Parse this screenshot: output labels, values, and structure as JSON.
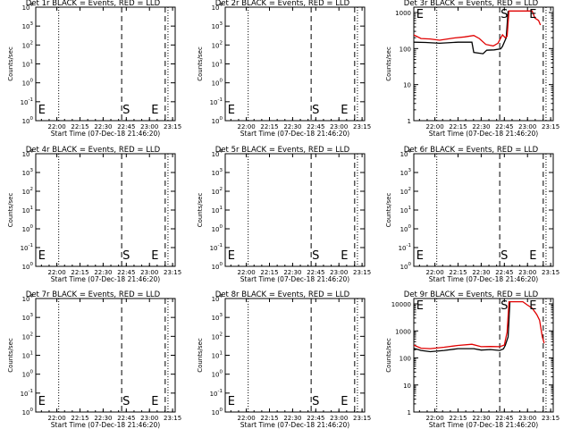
{
  "chart_data": [
    {
      "type": "line",
      "title": "Det 1r BLACK = Events, RED = LLD",
      "xlabel": "Start Time (07-Dec-18 21:46:20)",
      "ylabel": "Counts/sec",
      "ylog": true,
      "x_ticks": [
        "22:00",
        "22:15",
        "22:30",
        "22:45",
        "23:00",
        "23:15"
      ],
      "y_ticks": [
        {
          "m": "10",
          "e": "4"
        },
        {
          "m": "10",
          "e": "3"
        },
        {
          "m": "10",
          "e": "2"
        },
        {
          "m": "10",
          "e": "1"
        },
        {
          "m": "10",
          "e": "0"
        },
        {
          "m": "10",
          "e": "-1"
        },
        {
          "m": "10",
          "e": "0"
        }
      ],
      "markers": [
        "E",
        "S",
        "E"
      ],
      "series": []
    },
    {
      "type": "line",
      "title": "Det 2r BLACK = Events, RED = LLD",
      "xlabel": "Start Time (07-Dec-18 21:46:20)",
      "ylabel": "Counts/sec",
      "ylog": true,
      "x_ticks": [
        "22:00",
        "22:15",
        "22:30",
        "22:45",
        "23:00",
        "23:15"
      ],
      "y_ticks": [
        {
          "m": "10",
          "e": "4"
        },
        {
          "m": "10",
          "e": "3"
        },
        {
          "m": "10",
          "e": "2"
        },
        {
          "m": "10",
          "e": "1"
        },
        {
          "m": "10",
          "e": "0"
        },
        {
          "m": "10",
          "e": "-1"
        },
        {
          "m": "10",
          "e": "0"
        }
      ],
      "markers": [
        "E",
        "S",
        "E"
      ],
      "series": []
    },
    {
      "type": "line",
      "title": "Det 3r BLACK = Events, RED = LLD",
      "xlabel": "Start Time (07-Dec-18 21:46:20)",
      "ylabel": "Counts/sec",
      "ylog": true,
      "x_ticks": [
        "22:00",
        "22:15",
        "22:30",
        "22:45",
        "23:00",
        "23:15"
      ],
      "y_ticks": [
        {
          "m": "1000",
          "e": ""
        },
        {
          "m": "100",
          "e": ""
        },
        {
          "m": "10",
          "e": ""
        },
        {
          "m": "1",
          "e": ""
        }
      ],
      "ylim": [
        1,
        1000
      ],
      "markers": [
        "E",
        "S",
        "E"
      ],
      "series": [
        {
          "color": "#000000",
          "points": [
            [
              21.77,
              150
            ],
            [
              21.9,
              148
            ],
            [
              22.05,
              140
            ],
            [
              22.25,
              150
            ],
            [
              22.4,
              150
            ],
            [
              22.42,
              78
            ],
            [
              22.52,
              72
            ],
            [
              22.56,
              90
            ],
            [
              22.64,
              92
            ],
            [
              22.71,
              98
            ],
            [
              22.73,
              115
            ],
            [
              22.77,
              200
            ],
            [
              22.79,
              1100
            ]
          ]
        },
        {
          "color": "#e00000",
          "points": [
            [
              21.77,
              240
            ],
            [
              21.85,
              190
            ],
            [
              21.95,
              185
            ],
            [
              22.05,
              170
            ],
            [
              22.2,
              195
            ],
            [
              22.32,
              210
            ],
            [
              22.42,
              230
            ],
            [
              22.48,
              190
            ],
            [
              22.55,
              130
            ],
            [
              22.63,
              118
            ],
            [
              22.68,
              140
            ],
            [
              22.73,
              240
            ],
            [
              22.76,
              200
            ],
            [
              22.78,
              220
            ],
            [
              22.8,
              1100
            ],
            [
              23.05,
              1100
            ],
            [
              23.08,
              700
            ],
            [
              23.12,
              600
            ],
            [
              23.14,
              450
            ]
          ]
        }
      ]
    },
    {
      "type": "line",
      "title": "Det 4r BLACK = Events, RED = LLD",
      "xlabel": "Start Time (07-Dec-18 21:46:20)",
      "ylabel": "Counts/sec",
      "ylog": true,
      "x_ticks": [
        "22:00",
        "22:15",
        "22:30",
        "22:45",
        "23:00",
        "23:15"
      ],
      "y_ticks": [
        {
          "m": "10",
          "e": "4"
        },
        {
          "m": "10",
          "e": "3"
        },
        {
          "m": "10",
          "e": "2"
        },
        {
          "m": "10",
          "e": "1"
        },
        {
          "m": "10",
          "e": "0"
        },
        {
          "m": "10",
          "e": "-1"
        },
        {
          "m": "10",
          "e": "0"
        }
      ],
      "markers": [
        "E",
        "S",
        "E"
      ],
      "series": []
    },
    {
      "type": "line",
      "title": "Det 5r BLACK = Events, RED = LLD",
      "xlabel": "Start Time (07-Dec-18 21:46:20)",
      "ylabel": "Counts/sec",
      "ylog": true,
      "x_ticks": [
        "22:00",
        "22:15",
        "22:30",
        "22:45",
        "23:00",
        "23:15"
      ],
      "y_ticks": [
        {
          "m": "10",
          "e": "4"
        },
        {
          "m": "10",
          "e": "3"
        },
        {
          "m": "10",
          "e": "2"
        },
        {
          "m": "10",
          "e": "1"
        },
        {
          "m": "10",
          "e": "0"
        },
        {
          "m": "10",
          "e": "-1"
        },
        {
          "m": "10",
          "e": "0"
        }
      ],
      "markers": [
        "E",
        "S",
        "E"
      ],
      "series": []
    },
    {
      "type": "line",
      "title": "Det 6r BLACK = Events, RED = LLD",
      "xlabel": "Start Time (07-Dec-18 21:46:20)",
      "ylabel": "Counts/sec",
      "ylog": true,
      "x_ticks": [
        "22:00",
        "22:15",
        "22:30",
        "22:45",
        "23:00",
        "23:15"
      ],
      "y_ticks": [
        {
          "m": "10",
          "e": "4"
        },
        {
          "m": "10",
          "e": "3"
        },
        {
          "m": "10",
          "e": "2"
        },
        {
          "m": "10",
          "e": "1"
        },
        {
          "m": "10",
          "e": "0"
        },
        {
          "m": "10",
          "e": "-1"
        },
        {
          "m": "10",
          "e": "0"
        }
      ],
      "markers": [
        "E",
        "S",
        "E"
      ],
      "series": []
    },
    {
      "type": "line",
      "title": "Det 7r BLACK = Events, RED = LLD",
      "xlabel": "Start Time (07-Dec-18 21:46:20)",
      "ylabel": "Counts/sec",
      "ylog": true,
      "x_ticks": [
        "22:00",
        "22:15",
        "22:30",
        "22:45",
        "23:00",
        "23:15"
      ],
      "y_ticks": [
        {
          "m": "10",
          "e": "4"
        },
        {
          "m": "10",
          "e": "3"
        },
        {
          "m": "10",
          "e": "2"
        },
        {
          "m": "10",
          "e": "1"
        },
        {
          "m": "10",
          "e": "0"
        },
        {
          "m": "10",
          "e": "-1"
        },
        {
          "m": "10",
          "e": "0"
        }
      ],
      "markers": [
        "E",
        "S",
        "E"
      ],
      "series": []
    },
    {
      "type": "line",
      "title": "Det 8r BLACK = Events, RED = LLD",
      "xlabel": "Start Time (07-Dec-18 21:46:20)",
      "ylabel": "Counts/sec",
      "ylog": true,
      "x_ticks": [
        "22:00",
        "22:15",
        "22:30",
        "22:45",
        "23:00",
        "23:15"
      ],
      "y_ticks": [
        {
          "m": "10",
          "e": "4"
        },
        {
          "m": "10",
          "e": "3"
        },
        {
          "m": "10",
          "e": "2"
        },
        {
          "m": "10",
          "e": "1"
        },
        {
          "m": "10",
          "e": "0"
        },
        {
          "m": "10",
          "e": "-1"
        },
        {
          "m": "10",
          "e": "0"
        }
      ],
      "markers": [
        "E",
        "S",
        "E"
      ],
      "series": []
    },
    {
      "type": "line",
      "title": "Det 9r BLACK = Events, RED = LLD",
      "xlabel": "Start Time (07-Dec-18 21:46:20)",
      "ylabel": "Counts/sec",
      "ylog": true,
      "x_ticks": [
        "22:00",
        "22:15",
        "22:30",
        "22:45",
        "23:00",
        "23:15"
      ],
      "y_ticks": [
        {
          "m": "10000",
          "e": ""
        },
        {
          "m": "1000",
          "e": ""
        },
        {
          "m": "100",
          "e": ""
        },
        {
          "m": "10",
          "e": ""
        },
        {
          "m": "1",
          "e": ""
        }
      ],
      "ylim": [
        1,
        10000
      ],
      "markers": [
        "E",
        "S",
        "E"
      ],
      "series": [
        {
          "color": "#000000",
          "points": [
            [
              21.77,
              230
            ],
            [
              21.85,
              190
            ],
            [
              21.95,
              170
            ],
            [
              22.1,
              190
            ],
            [
              22.25,
              220
            ],
            [
              22.42,
              220
            ],
            [
              22.5,
              195
            ],
            [
              22.6,
              205
            ],
            [
              22.7,
              190
            ],
            [
              22.74,
              215
            ],
            [
              22.76,
              290
            ],
            [
              22.79,
              600
            ],
            [
              22.81,
              12000
            ]
          ]
        },
        {
          "color": "#e00000",
          "points": [
            [
              21.77,
              300
            ],
            [
              21.85,
              230
            ],
            [
              21.95,
              220
            ],
            [
              22.1,
              250
            ],
            [
              22.25,
              290
            ],
            [
              22.4,
              320
            ],
            [
              22.5,
              260
            ],
            [
              22.6,
              265
            ],
            [
              22.7,
              260
            ],
            [
              22.75,
              300
            ],
            [
              22.78,
              900
            ],
            [
              22.8,
              12000
            ],
            [
              22.95,
              12000
            ],
            [
              23.0,
              9000
            ],
            [
              23.05,
              7000
            ],
            [
              23.1,
              4000
            ],
            [
              23.13,
              2500
            ],
            [
              23.16,
              600
            ],
            [
              23.18,
              350
            ]
          ]
        }
      ]
    }
  ]
}
